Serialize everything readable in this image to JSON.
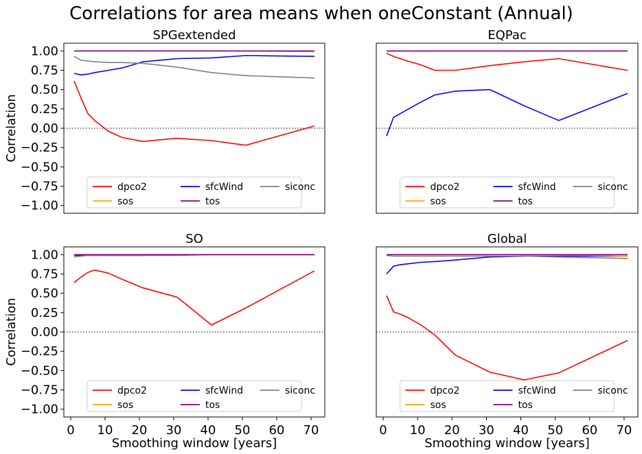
{
  "figure": {
    "title": "Correlations for area means when oneConstant (Annual)",
    "xlabel": "Smoothing window [years]",
    "ylabel": "Correlation"
  },
  "colors": {
    "dpco2": "#ff0000",
    "sfcWind": "#0000ff",
    "siconc": "#808080",
    "sos": "#ffa500",
    "tos": "#800080",
    "zero_line": "#555555"
  },
  "chart_data": [
    {
      "type": "line",
      "title": "SPGextended",
      "xlim": [
        -2,
        74
      ],
      "ylim": [
        -1.1,
        1.1
      ],
      "xticks": [
        0,
        10,
        20,
        30,
        40,
        50,
        60,
        70
      ],
      "yticks": [
        -1.0,
        -0.75,
        -0.5,
        -0.25,
        0.0,
        0.25,
        0.5,
        0.75,
        1.0
      ],
      "show_xticklabels": false,
      "show_yticklabels": true,
      "show_ylabel": true,
      "show_xlabel": false,
      "legend": {
        "location": "lower center",
        "columns": 3,
        "entries": [
          "dpco2",
          "sfcWind",
          "siconc",
          "sos",
          "tos"
        ]
      },
      "x": [
        1,
        3,
        5,
        7,
        11,
        15,
        21,
        31,
        41,
        51,
        71
      ],
      "series": [
        {
          "name": "dpco2",
          "values": [
            0.61,
            0.39,
            0.19,
            0.1,
            -0.04,
            -0.12,
            -0.17,
            -0.13,
            -0.16,
            -0.22,
            0.03
          ]
        },
        {
          "name": "sfcWind",
          "values": [
            0.71,
            0.69,
            0.7,
            0.72,
            0.75,
            0.78,
            0.86,
            0.9,
            0.91,
            0.94,
            0.93
          ]
        },
        {
          "name": "siconc",
          "values": [
            0.93,
            0.88,
            0.87,
            0.86,
            0.85,
            0.85,
            0.84,
            0.79,
            0.72,
            0.68,
            0.65
          ]
        },
        {
          "name": "sos",
          "values": [
            1.0,
            1.0,
            1.0,
            1.0,
            1.0,
            1.0,
            1.0,
            1.0,
            1.0,
            1.0,
            0.99
          ]
        },
        {
          "name": "tos",
          "values": [
            1.0,
            1.0,
            1.0,
            1.0,
            1.0,
            1.0,
            1.0,
            1.0,
            1.0,
            1.0,
            1.0
          ]
        }
      ]
    },
    {
      "type": "line",
      "title": "EQPac",
      "xlim": [
        -2,
        74
      ],
      "ylim": [
        -1.1,
        1.1
      ],
      "xticks": [
        0,
        10,
        20,
        30,
        40,
        50,
        60,
        70
      ],
      "yticks": [
        -1.0,
        -0.75,
        -0.5,
        -0.25,
        0.0,
        0.25,
        0.5,
        0.75,
        1.0
      ],
      "show_xticklabels": false,
      "show_yticklabels": false,
      "show_ylabel": false,
      "show_xlabel": false,
      "legend": {
        "location": "lower center",
        "columns": 3,
        "entries": [
          "dpco2",
          "sfcWind",
          "siconc",
          "sos",
          "tos"
        ]
      },
      "x": [
        1,
        3,
        5,
        7,
        11,
        15,
        21,
        31,
        41,
        51,
        71
      ],
      "series": [
        {
          "name": "dpco2",
          "values": [
            0.97,
            0.93,
            0.9,
            0.87,
            0.82,
            0.75,
            0.75,
            0.81,
            0.86,
            0.9,
            0.75
          ]
        },
        {
          "name": "sfcWind",
          "values": [
            -0.1,
            0.14,
            0.19,
            0.24,
            0.34,
            0.43,
            0.48,
            0.5,
            0.29,
            0.1,
            0.45
          ]
        },
        {
          "name": "siconc",
          "values": [
            1.0,
            1.0,
            1.0,
            1.0,
            1.0,
            1.0,
            1.0,
            1.0,
            1.0,
            1.0,
            1.0
          ]
        },
        {
          "name": "sos",
          "values": [
            1.0,
            1.0,
            1.0,
            1.0,
            1.0,
            1.0,
            1.0,
            1.0,
            1.0,
            1.0,
            1.0
          ]
        },
        {
          "name": "tos",
          "values": [
            1.0,
            1.0,
            1.0,
            1.0,
            1.0,
            1.0,
            1.0,
            1.0,
            1.0,
            1.0,
            1.0
          ]
        }
      ]
    },
    {
      "type": "line",
      "title": "SO",
      "xlim": [
        -2,
        74
      ],
      "ylim": [
        -1.1,
        1.1
      ],
      "xticks": [
        0,
        10,
        20,
        30,
        40,
        50,
        60,
        70
      ],
      "yticks": [
        -1.0,
        -0.75,
        -0.5,
        -0.25,
        0.0,
        0.25,
        0.5,
        0.75,
        1.0
      ],
      "show_xticklabels": true,
      "show_yticklabels": true,
      "show_ylabel": true,
      "show_xlabel": true,
      "legend": {
        "location": "lower center",
        "columns": 3,
        "entries": [
          "dpco2",
          "sfcWind",
          "siconc",
          "sos",
          "tos"
        ]
      },
      "x": [
        1,
        3,
        5,
        7,
        11,
        15,
        21,
        31,
        41,
        51,
        71
      ],
      "series": [
        {
          "name": "dpco2",
          "values": [
            0.64,
            0.71,
            0.77,
            0.8,
            0.76,
            0.68,
            0.57,
            0.45,
            0.09,
            0.31,
            0.79
          ]
        },
        {
          "name": "sfcWind",
          "values": [
            0.99,
            0.99,
            0.99,
            0.99,
            0.99,
            0.99,
            0.99,
            1.0,
            1.0,
            1.0,
            1.0
          ]
        },
        {
          "name": "siconc",
          "values": [
            0.97,
            0.98,
            0.99,
            0.99,
            0.99,
            0.99,
            0.99,
            0.99,
            1.0,
            1.0,
            1.0
          ]
        },
        {
          "name": "sos",
          "values": [
            1.0,
            1.0,
            1.0,
            1.0,
            1.0,
            1.0,
            1.0,
            1.0,
            1.0,
            1.0,
            1.0
          ]
        },
        {
          "name": "tos",
          "values": [
            1.0,
            1.0,
            1.0,
            1.0,
            1.0,
            1.0,
            1.0,
            1.0,
            1.0,
            1.0,
            1.0
          ]
        }
      ]
    },
    {
      "type": "line",
      "title": "Global",
      "xlim": [
        -2,
        74
      ],
      "ylim": [
        -1.1,
        1.1
      ],
      "xticks": [
        0,
        10,
        20,
        30,
        40,
        50,
        60,
        70
      ],
      "yticks": [
        -1.0,
        -0.75,
        -0.5,
        -0.25,
        0.0,
        0.25,
        0.5,
        0.75,
        1.0
      ],
      "show_xticklabels": true,
      "show_yticklabels": false,
      "show_ylabel": false,
      "show_xlabel": true,
      "legend": {
        "location": "lower center",
        "columns": 3,
        "entries": [
          "dpco2",
          "sfcWind",
          "siconc",
          "sos",
          "tos"
        ]
      },
      "x": [
        1,
        3,
        5,
        7,
        11,
        15,
        21,
        31,
        41,
        51,
        71
      ],
      "series": [
        {
          "name": "dpco2",
          "values": [
            0.47,
            0.26,
            0.23,
            0.19,
            0.09,
            -0.04,
            -0.3,
            -0.52,
            -0.62,
            -0.53,
            -0.11
          ]
        },
        {
          "name": "sfcWind",
          "values": [
            0.75,
            0.85,
            0.87,
            0.88,
            0.9,
            0.91,
            0.93,
            0.97,
            0.98,
            0.98,
            0.98
          ]
        },
        {
          "name": "siconc",
          "values": [
            0.99,
            0.98,
            0.98,
            0.98,
            0.98,
            0.98,
            0.98,
            0.98,
            0.98,
            0.97,
            0.95
          ]
        },
        {
          "name": "sos",
          "values": [
            1.0,
            1.0,
            1.0,
            1.0,
            1.0,
            1.0,
            1.0,
            1.0,
            1.0,
            1.0,
            0.98
          ]
        },
        {
          "name": "tos",
          "values": [
            1.0,
            1.0,
            1.0,
            1.0,
            1.0,
            1.0,
            1.0,
            1.0,
            1.0,
            1.0,
            1.0
          ]
        }
      ]
    }
  ]
}
